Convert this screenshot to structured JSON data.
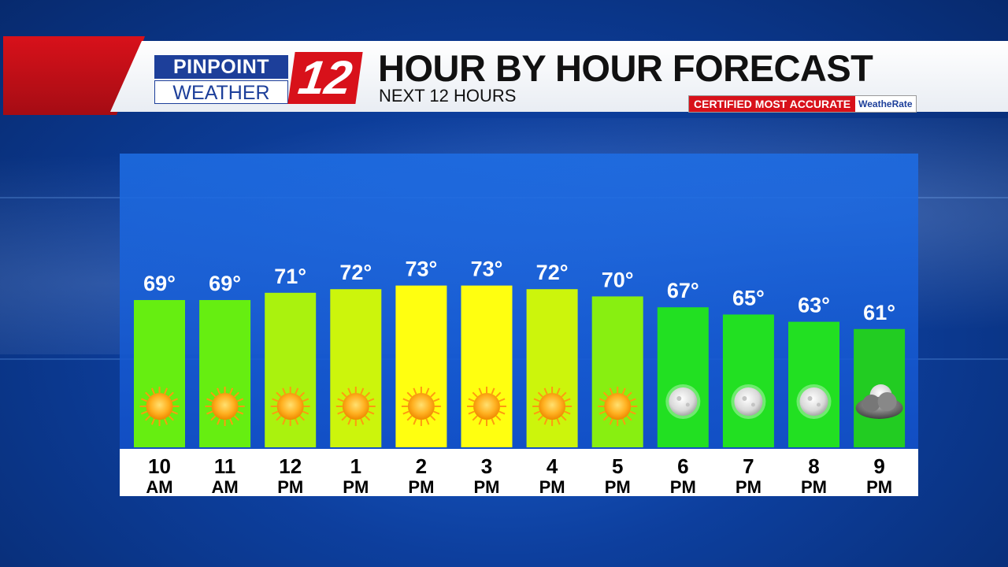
{
  "header": {
    "logo_top": "PINPOINT",
    "logo_bottom": "WEATHER",
    "logo_number": "12",
    "title": "HOUR BY HOUR FORECAST",
    "subtitle": "NEXT 12 HOURS",
    "badge_text": "CERTIFIED MOST ACCURATE",
    "badge_brand": "WeatheRate"
  },
  "colors": {
    "brand_red": "#d8111a",
    "brand_blue": "#1d3f9a"
  },
  "chart_data": {
    "type": "bar",
    "title": "HOUR BY HOUR FORECAST",
    "subtitle": "NEXT 12 HOURS",
    "categories": [
      "10 AM",
      "11 AM",
      "12 PM",
      "1 PM",
      "2 PM",
      "3 PM",
      "4 PM",
      "5 PM",
      "6 PM",
      "7 PM",
      "8 PM",
      "9 PM"
    ],
    "hour_labels": [
      [
        "10",
        "AM"
      ],
      [
        "11",
        "AM"
      ],
      [
        "12",
        "PM"
      ],
      [
        "1",
        "PM"
      ],
      [
        "2",
        "PM"
      ],
      [
        "3",
        "PM"
      ],
      [
        "4",
        "PM"
      ],
      [
        "5",
        "PM"
      ],
      [
        "6",
        "PM"
      ],
      [
        "7",
        "PM"
      ],
      [
        "8",
        "PM"
      ],
      [
        "9",
        "PM"
      ]
    ],
    "values": [
      69,
      69,
      71,
      72,
      73,
      73,
      72,
      70,
      67,
      65,
      63,
      61
    ],
    "value_labels": [
      "69°",
      "69°",
      "71°",
      "72°",
      "73°",
      "73°",
      "72°",
      "70°",
      "67°",
      "65°",
      "63°",
      "61°"
    ],
    "icons": [
      "sun-icon",
      "sun-icon",
      "sun-icon",
      "sun-icon",
      "sun-icon",
      "sun-icon",
      "sun-icon",
      "sun-icon",
      "moon-icon",
      "moon-icon",
      "moon-icon",
      "cloudy-night-icon"
    ],
    "bar_colors": [
      "#66ee11",
      "#66ee11",
      "#aaf20e",
      "#ccf50c",
      "#ffff10",
      "#ffff10",
      "#ccf50c",
      "#88ef11",
      "#22e022",
      "#22e022",
      "#22e022",
      "#22cc22"
    ],
    "xlabel": "",
    "ylabel": "",
    "grid": false
  }
}
